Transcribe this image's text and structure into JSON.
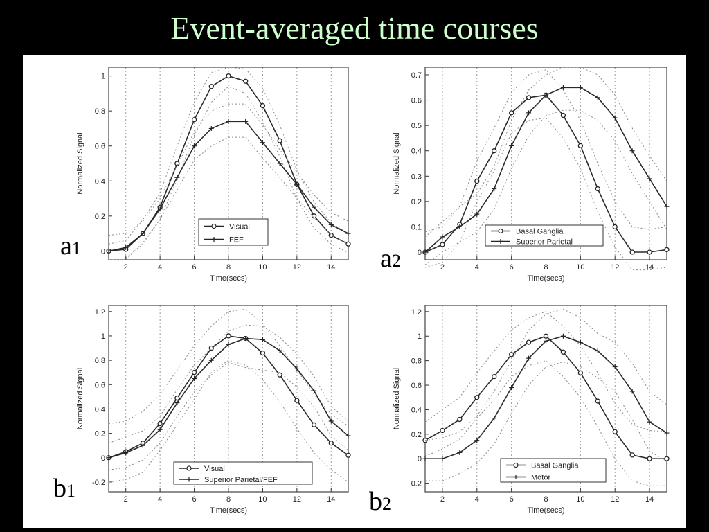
{
  "slide": {
    "title": "Event-averaged time courses"
  },
  "chart_data": [
    {
      "type": "line",
      "panel_label": "a",
      "panel_sub": "1",
      "xlabel": "Time(secs)",
      "ylabel": "Normalized Signal",
      "xlim": [
        1,
        15
      ],
      "ylim": [
        -0.05,
        1.05
      ],
      "xticks": [
        2,
        4,
        6,
        8,
        10,
        12,
        14
      ],
      "yticks": [
        0,
        0.2,
        0.4,
        0.6,
        0.8,
        1
      ],
      "ytick_labels": [
        "0",
        "0.2",
        "0.4",
        "0.6",
        "0.8",
        "1"
      ],
      "x": [
        1,
        2,
        3,
        4,
        5,
        6,
        7,
        8,
        9,
        10,
        11,
        12,
        13,
        14,
        15
      ],
      "grid": "vertical",
      "legend": "bottom-center",
      "series": [
        {
          "name": "Visual",
          "marker": "circle",
          "values": [
            0,
            0.01,
            0.1,
            0.25,
            0.5,
            0.75,
            0.94,
            1.0,
            0.97,
            0.83,
            0.63,
            0.38,
            0.2,
            0.09,
            0.04
          ],
          "band_upper": [
            0.04,
            0.06,
            0.18,
            0.33,
            0.6,
            0.85,
            1.02,
            1.05,
            1.04,
            0.93,
            0.72,
            0.46,
            0.28,
            0.16,
            0.1
          ],
          "band_lower": [
            -0.04,
            -0.04,
            0.04,
            0.18,
            0.41,
            0.66,
            0.85,
            0.94,
            0.9,
            0.74,
            0.54,
            0.3,
            0.13,
            0.04,
            -0.01
          ]
        },
        {
          "name": "FEF",
          "marker": "plus",
          "values": [
            0,
            0.02,
            0.1,
            0.24,
            0.42,
            0.6,
            0.7,
            0.74,
            0.74,
            0.62,
            0.5,
            0.38,
            0.25,
            0.15,
            0.1
          ],
          "band_upper": [
            0.09,
            0.1,
            0.17,
            0.3,
            0.49,
            0.68,
            0.8,
            0.84,
            0.84,
            0.72,
            0.58,
            0.45,
            0.32,
            0.22,
            0.17
          ],
          "band_lower": [
            -0.05,
            -0.05,
            0.05,
            0.18,
            0.35,
            0.52,
            0.6,
            0.65,
            0.65,
            0.53,
            0.42,
            0.3,
            0.19,
            0.09,
            0.04
          ]
        }
      ]
    },
    {
      "type": "line",
      "panel_label": "a",
      "panel_sub": "2",
      "xlabel": "Time(secs)",
      "ylabel": "Normalized Signal",
      "xlim": [
        1,
        15
      ],
      "ylim": [
        -0.03,
        0.73
      ],
      "xticks": [
        2,
        4,
        6,
        8,
        10,
        12,
        14
      ],
      "yticks": [
        0,
        0.1,
        0.2,
        0.3,
        0.4,
        0.5,
        0.6,
        0.7
      ],
      "ytick_labels": [
        "0",
        "0.1",
        "0.2",
        "0.3",
        "0.4",
        "0.5",
        "0.6",
        "0.7"
      ],
      "x": [
        1,
        2,
        3,
        4,
        5,
        6,
        7,
        8,
        9,
        10,
        11,
        12,
        13,
        14,
        15
      ],
      "grid": "vertical",
      "legend": "bottom-right",
      "series": [
        {
          "name": "Basal Ganglia",
          "marker": "circle",
          "values": [
            0,
            0.03,
            0.11,
            0.28,
            0.4,
            0.55,
            0.61,
            0.62,
            0.54,
            0.42,
            0.25,
            0.1,
            0.0,
            0.0,
            0.01
          ],
          "band_upper": [
            0.08,
            0.1,
            0.18,
            0.36,
            0.49,
            0.63,
            0.7,
            0.72,
            0.64,
            0.52,
            0.35,
            0.2,
            0.1,
            0.09,
            0.1
          ],
          "band_lower": [
            -0.06,
            -0.04,
            0.04,
            0.2,
            0.32,
            0.47,
            0.52,
            0.53,
            0.45,
            0.33,
            0.16,
            0.02,
            -0.07,
            -0.07,
            -0.06
          ]
        },
        {
          "name": "Superior Parietal",
          "marker": "plus",
          "values": [
            0,
            0.06,
            0.1,
            0.15,
            0.25,
            0.42,
            0.55,
            0.62,
            0.65,
            0.65,
            0.61,
            0.53,
            0.4,
            0.29,
            0.18
          ],
          "band_upper": [
            0.06,
            0.12,
            0.18,
            0.23,
            0.34,
            0.52,
            0.64,
            0.7,
            0.73,
            0.73,
            0.7,
            0.62,
            0.49,
            0.38,
            0.28
          ],
          "band_lower": [
            -0.05,
            0.0,
            0.04,
            0.08,
            0.17,
            0.33,
            0.46,
            0.54,
            0.56,
            0.56,
            0.52,
            0.44,
            0.31,
            0.2,
            0.09
          ]
        }
      ]
    },
    {
      "type": "line",
      "panel_label": "b",
      "panel_sub": "1",
      "xlabel": "Time(secs)",
      "ylabel": "Normalized Signal",
      "xlim": [
        1,
        15
      ],
      "ylim": [
        -0.28,
        1.25
      ],
      "xticks": [
        2,
        4,
        6,
        8,
        10,
        12,
        14
      ],
      "yticks": [
        -0.2,
        0,
        0.2,
        0.4,
        0.6,
        0.8,
        1,
        1.2
      ],
      "ytick_labels": [
        "-0.2",
        "0",
        "0.2",
        "0.4",
        "0.6",
        "0.8",
        "1",
        "1.2"
      ],
      "x": [
        1,
        2,
        3,
        4,
        5,
        6,
        7,
        8,
        9,
        10,
        11,
        12,
        13,
        14,
        15
      ],
      "grid": "vertical",
      "legend": "bottom-center",
      "series": [
        {
          "name": "Visual",
          "marker": "circle",
          "values": [
            0,
            0.05,
            0.12,
            0.28,
            0.49,
            0.7,
            0.9,
            1.0,
            0.98,
            0.86,
            0.68,
            0.47,
            0.27,
            0.12,
            0.02
          ],
          "band_upper": [
            0.28,
            0.3,
            0.38,
            0.52,
            0.72,
            0.92,
            1.08,
            1.2,
            1.22,
            1.1,
            0.92,
            0.72,
            0.52,
            0.36,
            0.26
          ],
          "band_lower": [
            -0.2,
            -0.18,
            -0.12,
            0.06,
            0.27,
            0.48,
            0.7,
            0.8,
            0.76,
            0.64,
            0.46,
            0.24,
            0.04,
            -0.1,
            -0.2
          ]
        },
        {
          "name": "Superior Parietal/FEF",
          "marker": "plus",
          "values": [
            0,
            0.04,
            0.1,
            0.23,
            0.45,
            0.65,
            0.8,
            0.93,
            0.98,
            0.97,
            0.88,
            0.73,
            0.55,
            0.3,
            0.18
          ],
          "band_upper": [
            0.12,
            0.17,
            0.22,
            0.34,
            0.56,
            0.76,
            0.9,
            1.04,
            1.09,
            1.08,
            0.99,
            0.85,
            0.67,
            0.42,
            0.3
          ],
          "band_lower": [
            -0.1,
            -0.08,
            -0.02,
            0.12,
            0.34,
            0.54,
            0.68,
            0.78,
            0.74,
            0.72,
            0.7,
            0.58,
            0.42,
            0.18,
            0.06
          ]
        }
      ]
    },
    {
      "type": "line",
      "panel_label": "b",
      "panel_sub": "2",
      "xlabel": "Time(secs)",
      "ylabel": "Normalized Signal",
      "xlim": [
        1,
        15
      ],
      "ylim": [
        -0.27,
        1.25
      ],
      "xticks": [
        2,
        4,
        6,
        8,
        10,
        12,
        14
      ],
      "yticks": [
        -0.2,
        0,
        0.2,
        0.4,
        0.6,
        0.8,
        1,
        1.2
      ],
      "ytick_labels": [
        "-0.2",
        "0",
        "0.2",
        "0.4",
        "0.6",
        "0.8",
        "1",
        "1.2"
      ],
      "x": [
        1,
        2,
        3,
        4,
        5,
        6,
        7,
        8,
        9,
        10,
        11,
        12,
        13,
        14,
        15
      ],
      "grid": "vertical",
      "legend": "bottom-right",
      "series": [
        {
          "name": "Basal Ganglia",
          "marker": "circle",
          "values": [
            0.15,
            0.23,
            0.32,
            0.5,
            0.67,
            0.85,
            0.95,
            1.0,
            0.87,
            0.7,
            0.47,
            0.22,
            0.03,
            0.0,
            0.0
          ],
          "band_upper": [
            0.3,
            0.4,
            0.5,
            0.7,
            0.88,
            1.05,
            1.15,
            1.2,
            1.08,
            0.92,
            0.7,
            0.45,
            0.28,
            0.23,
            0.22
          ],
          "band_lower": [
            0.02,
            0.08,
            0.16,
            0.33,
            0.48,
            0.67,
            0.76,
            0.8,
            0.67,
            0.5,
            0.26,
            0.0,
            -0.18,
            -0.22,
            -0.22
          ]
        },
        {
          "name": "Motor",
          "marker": "plus",
          "values": [
            0.0,
            0.0,
            0.05,
            0.15,
            0.33,
            0.58,
            0.82,
            0.96,
            1.0,
            0.95,
            0.88,
            0.75,
            0.55,
            0.3,
            0.21
          ],
          "band_upper": [
            0.15,
            0.17,
            0.22,
            0.35,
            0.55,
            0.8,
            1.05,
            1.18,
            1.22,
            1.15,
            1.02,
            0.95,
            0.78,
            0.55,
            0.44
          ],
          "band_lower": [
            -0.18,
            -0.18,
            -0.12,
            -0.04,
            0.12,
            0.37,
            0.6,
            0.75,
            0.79,
            0.75,
            0.66,
            0.55,
            0.32,
            0.06,
            -0.02
          ]
        }
      ]
    }
  ]
}
